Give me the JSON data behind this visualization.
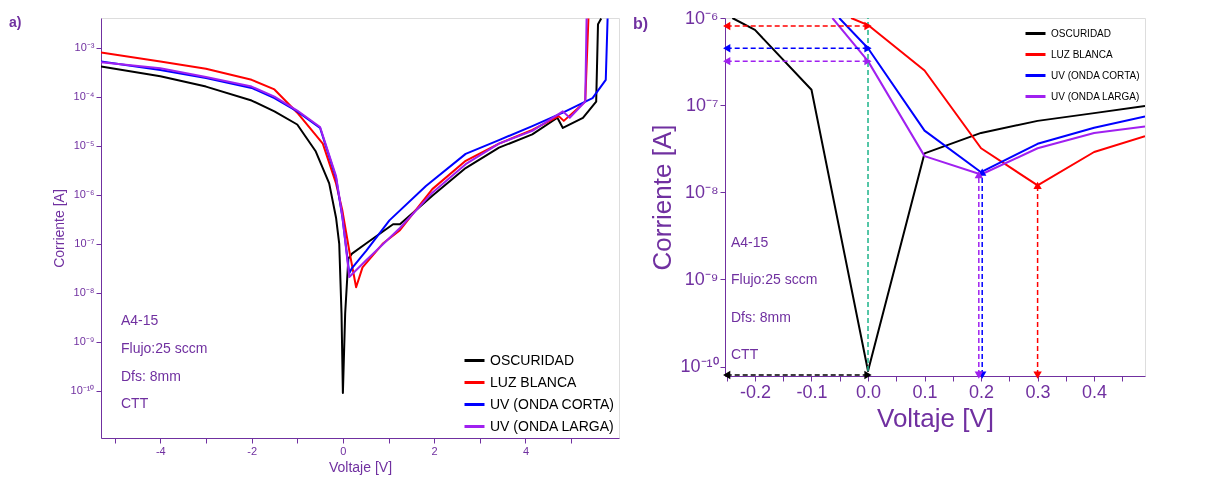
{
  "chart_data": [
    {
      "type": "line",
      "title": "a)",
      "xlabel": "Voltaje [V]",
      "ylabel": "Corriente [A]",
      "log": "y",
      "legend": "bottom right",
      "xlim": [
        -5.3,
        6.05
      ],
      "ylim": [
        1.1e-11,
        0.004
      ],
      "xticks": [
        {
          "value": -5,
          "label": null
        },
        -4,
        {
          "value": -3,
          "label": null
        },
        -2,
        {
          "value": -1,
          "label": null
        },
        0,
        {
          "value": 1,
          "label": null
        },
        2,
        {
          "value": 3,
          "label": null
        },
        4,
        {
          "value": 5,
          "label": null
        }
      ],
      "yticks": [
        {
          "value": 0.001,
          "label": "10⁻³"
        },
        {
          "value": 0.0001,
          "label": "10⁻⁴"
        },
        {
          "value": 1e-05,
          "label": "10⁻⁵"
        },
        {
          "value": 1e-06,
          "label": "10⁻⁶"
        },
        {
          "value": 1e-07,
          "label": "10⁻⁷"
        },
        {
          "value": 1e-08,
          "label": "10⁻⁸"
        },
        {
          "value": 1e-09,
          "label": "10⁻⁹"
        },
        {
          "value": 1e-10,
          "label": "10⁻¹⁰"
        }
      ],
      "annotations": [
        "A4-15",
        "Flujo:25 sccm",
        "Dfs: 8mm",
        "CTT"
      ],
      "series": [
        {
          "name": "OSCURIDAD",
          "color": "#000000",
          "x": [
            -5.3,
            -4,
            -3,
            -2,
            -1.5,
            -1,
            -0.6,
            -0.3,
            -0.15,
            -0.08,
            -0.03,
            0.0,
            0.05,
            0.12,
            0.2,
            0.5,
            1.1,
            1.25,
            1.96,
            2.69,
            3.42,
            4.15,
            4.7,
            4.82,
            5.26,
            5.55,
            5.59,
            5.66
          ],
          "values": [
            0.00041,
            0.00026,
            0.00016,
            8.3e-05,
            5e-05,
            2.7e-05,
            7.8e-06,
            1.7e-06,
            3.4e-07,
            1e-07,
            3.8e-09,
            9.1e-11,
            3.8e-09,
            5e-08,
            6.3e-08,
            1e-07,
            2.5e-07,
            2.5e-07,
            9.5e-07,
            3.5e-06,
            9.1e-06,
            1.7e-05,
            3.7e-05,
            2.3e-05,
            3.7e-05,
            7.9e-05,
            0.003,
            0.0039
          ]
        },
        {
          "name": "LUZ BLANCA",
          "color": "#ff0000",
          "x": [
            -5.3,
            -4,
            -3,
            -2,
            -1.5,
            -1,
            -0.44,
            -0.15,
            -0.01,
            0.14,
            0.29,
            0.43,
            0.87,
            1.25,
            1.96,
            2.69,
            3.42,
            4.15,
            4.73,
            4.84,
            5.31,
            5.38
          ],
          "values": [
            0.00079,
            0.00052,
            0.00037,
            0.00022,
            0.00014,
            4.7e-05,
            1.1e-05,
            1.7e-06,
            4.7e-07,
            7.2e-08,
            1.3e-08,
            3.3e-08,
            1e-07,
            1.9e-07,
            1.3e-06,
            4.9e-06,
            1.1e-05,
            2.1e-05,
            4e-05,
            3.2e-05,
            7.9e-05,
            0.0039
          ]
        },
        {
          "name": "UV (ONDA CORTA)",
          "color": "#0000ff",
          "x": [
            -5.3,
            -4,
            -3,
            -2,
            -1.5,
            -1,
            -0.5,
            -0.15,
            -0.01,
            0.14,
            0.2,
            0.51,
            1.02,
            1.82,
            2.69,
            3.42,
            4.15,
            4.82,
            5.47,
            5.76,
            5.8
          ],
          "values": [
            0.00052,
            0.00035,
            0.00024,
            0.00015,
            9.3e-05,
            5e-05,
            2.3e-05,
            2.2e-06,
            3.4e-07,
            2.5e-08,
            3.2e-08,
            7.2e-08,
            3e-07,
            1.5e-06,
            6.8e-06,
            1.3e-05,
            2.5e-05,
            4.7e-05,
            9.3e-05,
            0.00022,
            0.0039
          ]
        },
        {
          "name": "UV (ONDA LARGA)",
          "color": "#a020f0",
          "x": [
            -5.3,
            -4,
            -3,
            -2,
            -1.5,
            -1,
            -0.5,
            -0.15,
            -0.01,
            0.14,
            0.51,
            1.25,
            1.96,
            2.69,
            3.42,
            4.15,
            4.82,
            4.97,
            5.31,
            5.34
          ],
          "values": [
            0.0005,
            0.00038,
            0.00025,
            0.00016,
            0.0001,
            5.2e-05,
            2.4e-05,
            2.4e-06,
            3.6e-07,
            2.1e-08,
            4.6e-08,
            2.1e-07,
            1.1e-06,
            4.2e-06,
            1.1e-05,
            2e-05,
            5e-05,
            3.7e-05,
            7.9e-05,
            0.0039
          ]
        }
      ]
    },
    {
      "type": "line",
      "title": "b)",
      "xlabel": "Voltaje [V]",
      "ylabel": "Corriente [A]",
      "log": "y",
      "legend": "top right",
      "xlim": [
        -0.253,
        0.49
      ],
      "ylim": [
        7.8e-11,
        1e-06
      ],
      "xticks": [
        {
          "value": -0.25,
          "label": null
        },
        {
          "value": -0.2,
          "label": "-0.2"
        },
        {
          "value": -0.15,
          "label": null
        },
        {
          "value": -0.1,
          "label": "-0.1"
        },
        {
          "value": -0.05,
          "label": null
        },
        {
          "value": 0,
          "label": "0.0"
        },
        {
          "value": 0.05,
          "label": null
        },
        {
          "value": 0.1,
          "label": "0.1"
        },
        {
          "value": 0.15,
          "label": null
        },
        {
          "value": 0.2,
          "label": "0.2"
        },
        {
          "value": 0.25,
          "label": null
        },
        {
          "value": 0.3,
          "label": "0.3"
        },
        {
          "value": 0.35,
          "label": null
        },
        {
          "value": 0.4,
          "label": "0.4"
        },
        {
          "value": 0.45,
          "label": null
        }
      ],
      "yticks": [
        {
          "value": 1e-06,
          "label": "10⁻⁶"
        },
        {
          "value": 1e-07,
          "label": "10⁻⁷"
        },
        {
          "value": 1e-08,
          "label": "10⁻⁸"
        },
        {
          "value": 1e-09,
          "label": "10⁻⁹"
        },
        {
          "value": 1e-10,
          "label": "10⁻¹⁰"
        }
      ],
      "annotations": [
        "A4-15",
        "Flujo:25 sccm",
        "Dfs: 8mm",
        "CTT"
      ],
      "series": [
        {
          "name": "OSCURIDAD",
          "color": "#000000",
          "x": [
            -0.24,
            -0.2,
            -0.1,
            0.0,
            0.1,
            0.2,
            0.3,
            0.4,
            0.49
          ],
          "values": [
            1e-06,
            7.3e-07,
            1.5e-07,
            8.9e-11,
            2.8e-08,
            4.8e-08,
            6.6e-08,
            8.1e-08,
            9.8e-08
          ]
        },
        {
          "name": "LUZ BLANCA",
          "color": "#ff0000",
          "x": [
            -0.03,
            0.0,
            0.1,
            0.2,
            0.3,
            0.4,
            0.49
          ],
          "values": [
            1e-06,
            8.3e-07,
            2.5e-07,
            3.2e-08,
            1.2e-08,
            2.9e-08,
            4.4e-08
          ]
        },
        {
          "name": "UV (ONDA CORTA)",
          "color": "#0000ff",
          "x": [
            -0.051,
            0.0,
            0.1,
            0.2,
            0.3,
            0.4,
            0.49
          ],
          "values": [
            1e-06,
            4.5e-07,
            5.1e-08,
            1.7e-08,
            3.6e-08,
            5.5e-08,
            7.4e-08
          ]
        },
        {
          "name": "UV (ONDA LARGA)",
          "color": "#a020f0",
          "x": [
            -0.063,
            0.0,
            0.1,
            0.2,
            0.3,
            0.4,
            0.49
          ],
          "values": [
            1e-06,
            3.2e-07,
            2.6e-08,
            1.6e-08,
            3.2e-08,
            4.8e-08,
            5.7e-08
          ]
        },
        {
          "type": "line",
          "line_style": "dashed",
          "color": "#1db38a",
          "x": [
            0.0,
            0.0
          ],
          "values": [
            8.9e-11,
            1e-06
          ]
        },
        {
          "type": "line",
          "line_style": "dashed",
          "marker": "triangle",
          "color": "#ff0000",
          "x": [
            -0.25,
            0.0
          ],
          "values": [
            8.1e-07,
            8.1e-07
          ]
        },
        {
          "type": "line",
          "line_style": "dashed",
          "marker": "triangle",
          "color": "#0000ff",
          "x": [
            -0.25,
            0.0
          ],
          "values": [
            4.5e-07,
            4.5e-07
          ]
        },
        {
          "type": "line",
          "line_style": "dashed",
          "marker": "triangle",
          "color": "#a020f0",
          "x": [
            -0.25,
            0.0
          ],
          "values": [
            3.2e-07,
            3.2e-07
          ]
        },
        {
          "type": "line",
          "line_style": "dashed",
          "marker": "triangle",
          "color": "#000000",
          "x": [
            -0.25,
            0.0
          ],
          "values": [
            8e-11,
            8e-11
          ]
        },
        {
          "type": "line",
          "line_style": "dashed",
          "marker": "triangle",
          "color": "#0000ff",
          "x": [
            0.202,
            0.202
          ],
          "values": [
            8e-11,
            1.7e-08
          ]
        },
        {
          "type": "line",
          "line_style": "dashed",
          "marker": "triangle",
          "color": "#a020f0",
          "x": [
            0.196,
            0.196
          ],
          "values": [
            8e-11,
            1.6e-08
          ]
        },
        {
          "type": "line",
          "line_style": "dashed",
          "marker": "triangle",
          "color": "#ff0000",
          "x": [
            0.3,
            0.3
          ],
          "values": [
            8e-11,
            1.2e-08
          ]
        }
      ]
    }
  ]
}
